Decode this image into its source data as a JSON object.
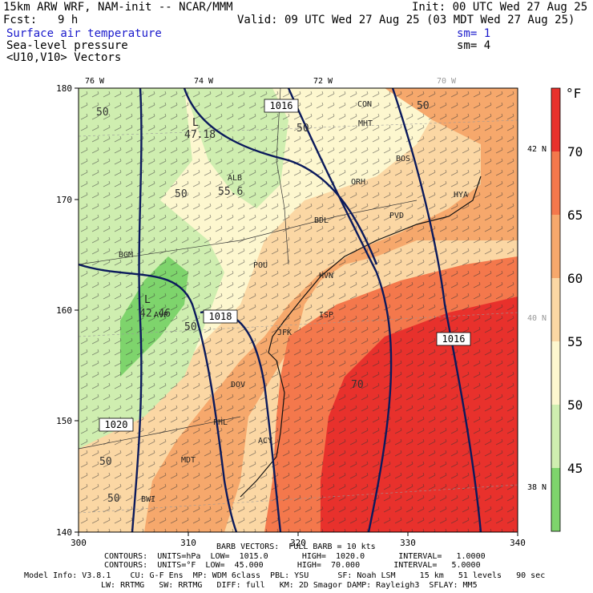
{
  "header": {
    "model_line": "15km ARW WRF, NAM-init -- NCAR/MMM",
    "init": "Init: 00 UTC Wed 27 Aug 25",
    "fcst_label": "Fcst:",
    "fcst_value": "9 h",
    "valid": "Valid: 09 UTC Wed 27 Aug 25 (03 MDT Wed 27 Aug 25)",
    "field1": "Surface air temperature",
    "field1_sm": "sm= 1",
    "field2": "Sea-level pressure",
    "field2_sm": "sm= 4",
    "field3": "<U10,V10> Vectors"
  },
  "map": {
    "lon_labels": [
      "76 W",
      "74 W",
      "72 W",
      "70 W"
    ],
    "lat_labels": [
      "42 N",
      "40 N",
      "38 N"
    ],
    "x_ticks": [
      "300",
      "310",
      "320",
      "330",
      "340"
    ],
    "y_ticks": [
      "140",
      "150",
      "160",
      "170",
      "180"
    ],
    "pressure_labels": [
      "1016",
      "1018",
      "1020",
      "1016"
    ],
    "temp_contour_labels": [
      "50",
      "50",
      "50",
      "50",
      "50",
      "50",
      "50",
      "70",
      "55.6",
      "47.18",
      "42.46"
    ],
    "station_labels": [
      "CON",
      "MHT",
      "BOS",
      "ORH",
      "ALB",
      "BDL",
      "PVD",
      "HYA",
      "BGM",
      "POU",
      "HVN",
      "AVP",
      "ISP",
      "JFK",
      "PHL",
      "ACY",
      "DOV",
      "BWI",
      "MDT",
      "L",
      "L"
    ]
  },
  "colorbar": {
    "unit": "°F",
    "labels": [
      "70",
      "65",
      "60",
      "55",
      "50",
      "45"
    ],
    "colors": [
      "#e8312c",
      "#f4784c",
      "#f6a86c",
      "#fbd7a4",
      "#fdf7cf",
      "#cfeeb0",
      "#7ed46c"
    ]
  },
  "footer": {
    "barb": "BARB VECTORS:  FULL BARB = 10 kts",
    "contours1": "CONTOURS:  UNITS=hPa  LOW=  1015.0       HIGH=  1020.0       INTERVAL=   1.0000",
    "contours2": "CONTOURS:  UNITS=°F  LOW=  45.000       HIGH=  70.000       INTERVAL=   5.0000",
    "model_info1": "Model Info: V3.8.1    CU: G-F Ens  MP: WDM 6class  PBL: YSU      SF: Noah LSM     15 km   51 levels   90 sec",
    "model_info2": "LW: RRTMG   SW: RRTMG   DIFF: full   KM: 2D Smagor DAMP: Rayleigh3  SFLAY: MM5"
  }
}
